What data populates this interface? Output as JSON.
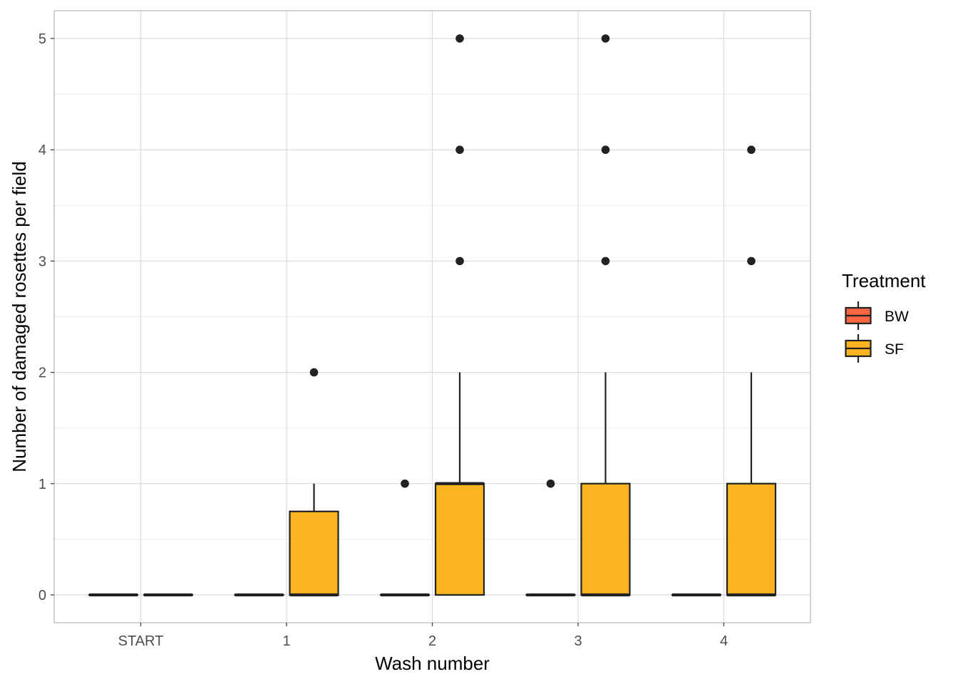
{
  "chart_data": {
    "type": "boxplot",
    "xlabel": "Wash number",
    "ylabel": "Number of damaged rosettes per field",
    "categories": [
      "START",
      "1",
      "2",
      "3",
      "4"
    ],
    "ylim": [
      -0.25,
      5.25
    ],
    "yticks": [
      0,
      1,
      2,
      3,
      4,
      5
    ],
    "grid": true,
    "legend": {
      "title": "Treatment",
      "position": "right",
      "entries": [
        {
          "label": "BW",
          "color": "#FB6542"
        },
        {
          "label": "SF",
          "color": "#FBB41F"
        }
      ]
    },
    "series": [
      {
        "name": "BW",
        "color": "#FB6542",
        "boxes": [
          {
            "category": "START",
            "min": 0,
            "q1": 0,
            "median": 0,
            "q3": 0,
            "max": 0,
            "outliers": []
          },
          {
            "category": "1",
            "min": 0,
            "q1": 0,
            "median": 0,
            "q3": 0,
            "max": 0,
            "outliers": []
          },
          {
            "category": "2",
            "min": 0,
            "q1": 0,
            "median": 0,
            "q3": 0,
            "max": 0,
            "outliers": [
              1
            ]
          },
          {
            "category": "3",
            "min": 0,
            "q1": 0,
            "median": 0,
            "q3": 0,
            "max": 0,
            "outliers": [
              1
            ]
          },
          {
            "category": "4",
            "min": 0,
            "q1": 0,
            "median": 0,
            "q3": 0,
            "max": 0,
            "outliers": []
          }
        ]
      },
      {
        "name": "SF",
        "color": "#FBB41F",
        "boxes": [
          {
            "category": "START",
            "min": 0,
            "q1": 0,
            "median": 0,
            "q3": 0,
            "max": 0,
            "outliers": []
          },
          {
            "category": "1",
            "min": 0,
            "q1": 0,
            "median": 0,
            "q3": 0.75,
            "max": 1,
            "outliers": [
              2
            ]
          },
          {
            "category": "2",
            "min": 0,
            "q1": 0,
            "median": 1,
            "q3": 1,
            "max": 2,
            "outliers": [
              3,
              4,
              5
            ]
          },
          {
            "category": "3",
            "min": 0,
            "q1": 0,
            "median": 0,
            "q3": 1,
            "max": 2,
            "outliers": [
              3,
              4,
              5
            ]
          },
          {
            "category": "4",
            "min": 0,
            "q1": 0,
            "median": 0,
            "q3": 1,
            "max": 2,
            "outliers": [
              3,
              4
            ]
          }
        ]
      }
    ]
  }
}
